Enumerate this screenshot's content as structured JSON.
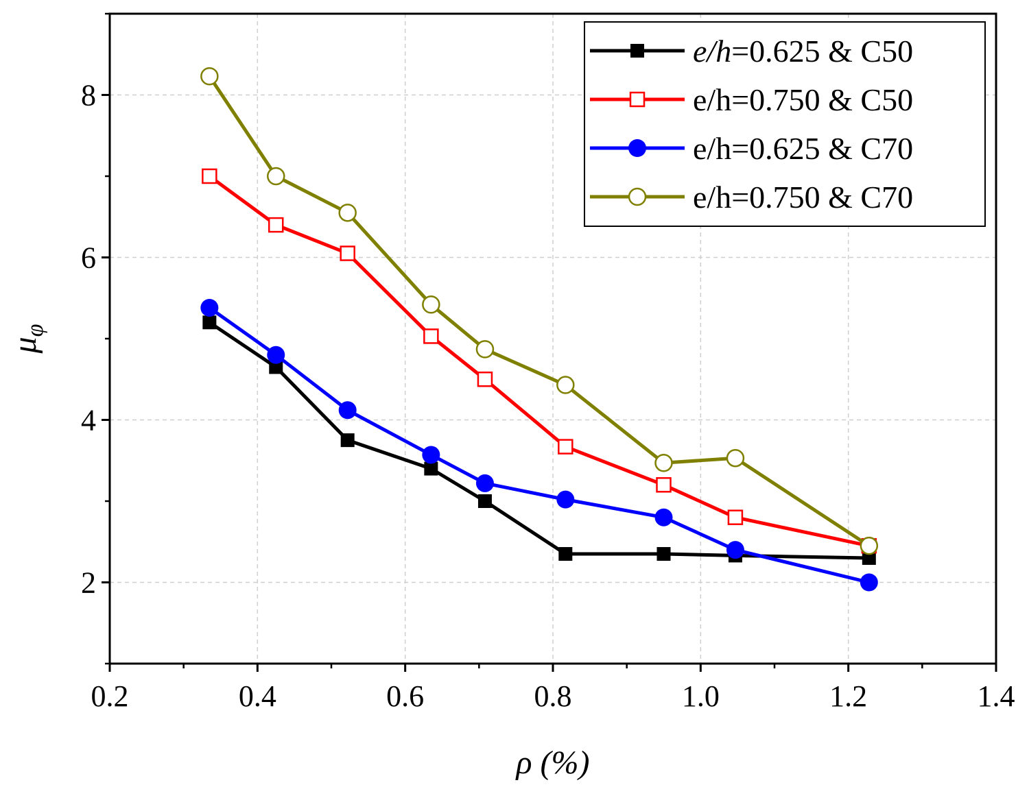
{
  "chart_data": {
    "type": "line",
    "title": "",
    "xlabel": "ρ (%)",
    "ylabel": "μφ",
    "ylabel_symbol": "μ",
    "ylabel_sub": "φ",
    "xlim": [
      0.2,
      1.4
    ],
    "ylim": [
      1.0,
      9.0
    ],
    "x_ticks": [
      0.2,
      0.4,
      0.6,
      0.8,
      1.0,
      1.2,
      1.4
    ],
    "x_tick_labels": [
      "0.2",
      "0.4",
      "0.6",
      "0.8",
      "1.0",
      "1.2",
      "1.4"
    ],
    "y_ticks": [
      2,
      4,
      6,
      8
    ],
    "y_tick_labels": [
      "2",
      "4",
      "6",
      "8"
    ],
    "grid": true,
    "legend_position": "top-right",
    "series": [
      {
        "name": "e/h=0.625 & C50",
        "name_italic_prefix": "e/h",
        "name_rest": "=0.625 & C50",
        "color": "#000000",
        "marker": "square-filled",
        "x": [
          0.335,
          0.425,
          0.522,
          0.635,
          0.708,
          0.817,
          0.95,
          1.047,
          1.228
        ],
        "y": [
          5.2,
          4.65,
          3.75,
          3.4,
          3.0,
          2.35,
          2.35,
          2.33,
          2.3
        ]
      },
      {
        "name": "e/h=0.750 & C50",
        "color": "#ff0000",
        "marker": "square-open",
        "x": [
          0.335,
          0.425,
          0.522,
          0.635,
          0.708,
          0.817,
          0.95,
          1.047,
          1.228
        ],
        "y": [
          7.0,
          6.4,
          6.05,
          5.03,
          4.5,
          3.67,
          3.2,
          2.8,
          2.45
        ]
      },
      {
        "name": "e/h=0.625 & C70",
        "color": "#0000ff",
        "marker": "circle-filled",
        "x": [
          0.335,
          0.425,
          0.522,
          0.635,
          0.708,
          0.817,
          0.95,
          1.047,
          1.228
        ],
        "y": [
          5.38,
          4.8,
          4.12,
          3.57,
          3.22,
          3.02,
          2.8,
          2.4,
          2.0
        ]
      },
      {
        "name": "e/h=0.750 & C70",
        "color": "#808000",
        "marker": "circle-open",
        "x": [
          0.335,
          0.425,
          0.522,
          0.635,
          0.708,
          0.817,
          0.95,
          1.047,
          1.228
        ],
        "y": [
          8.23,
          7.0,
          6.55,
          5.42,
          4.87,
          4.43,
          3.47,
          3.53,
          2.45
        ]
      }
    ]
  }
}
